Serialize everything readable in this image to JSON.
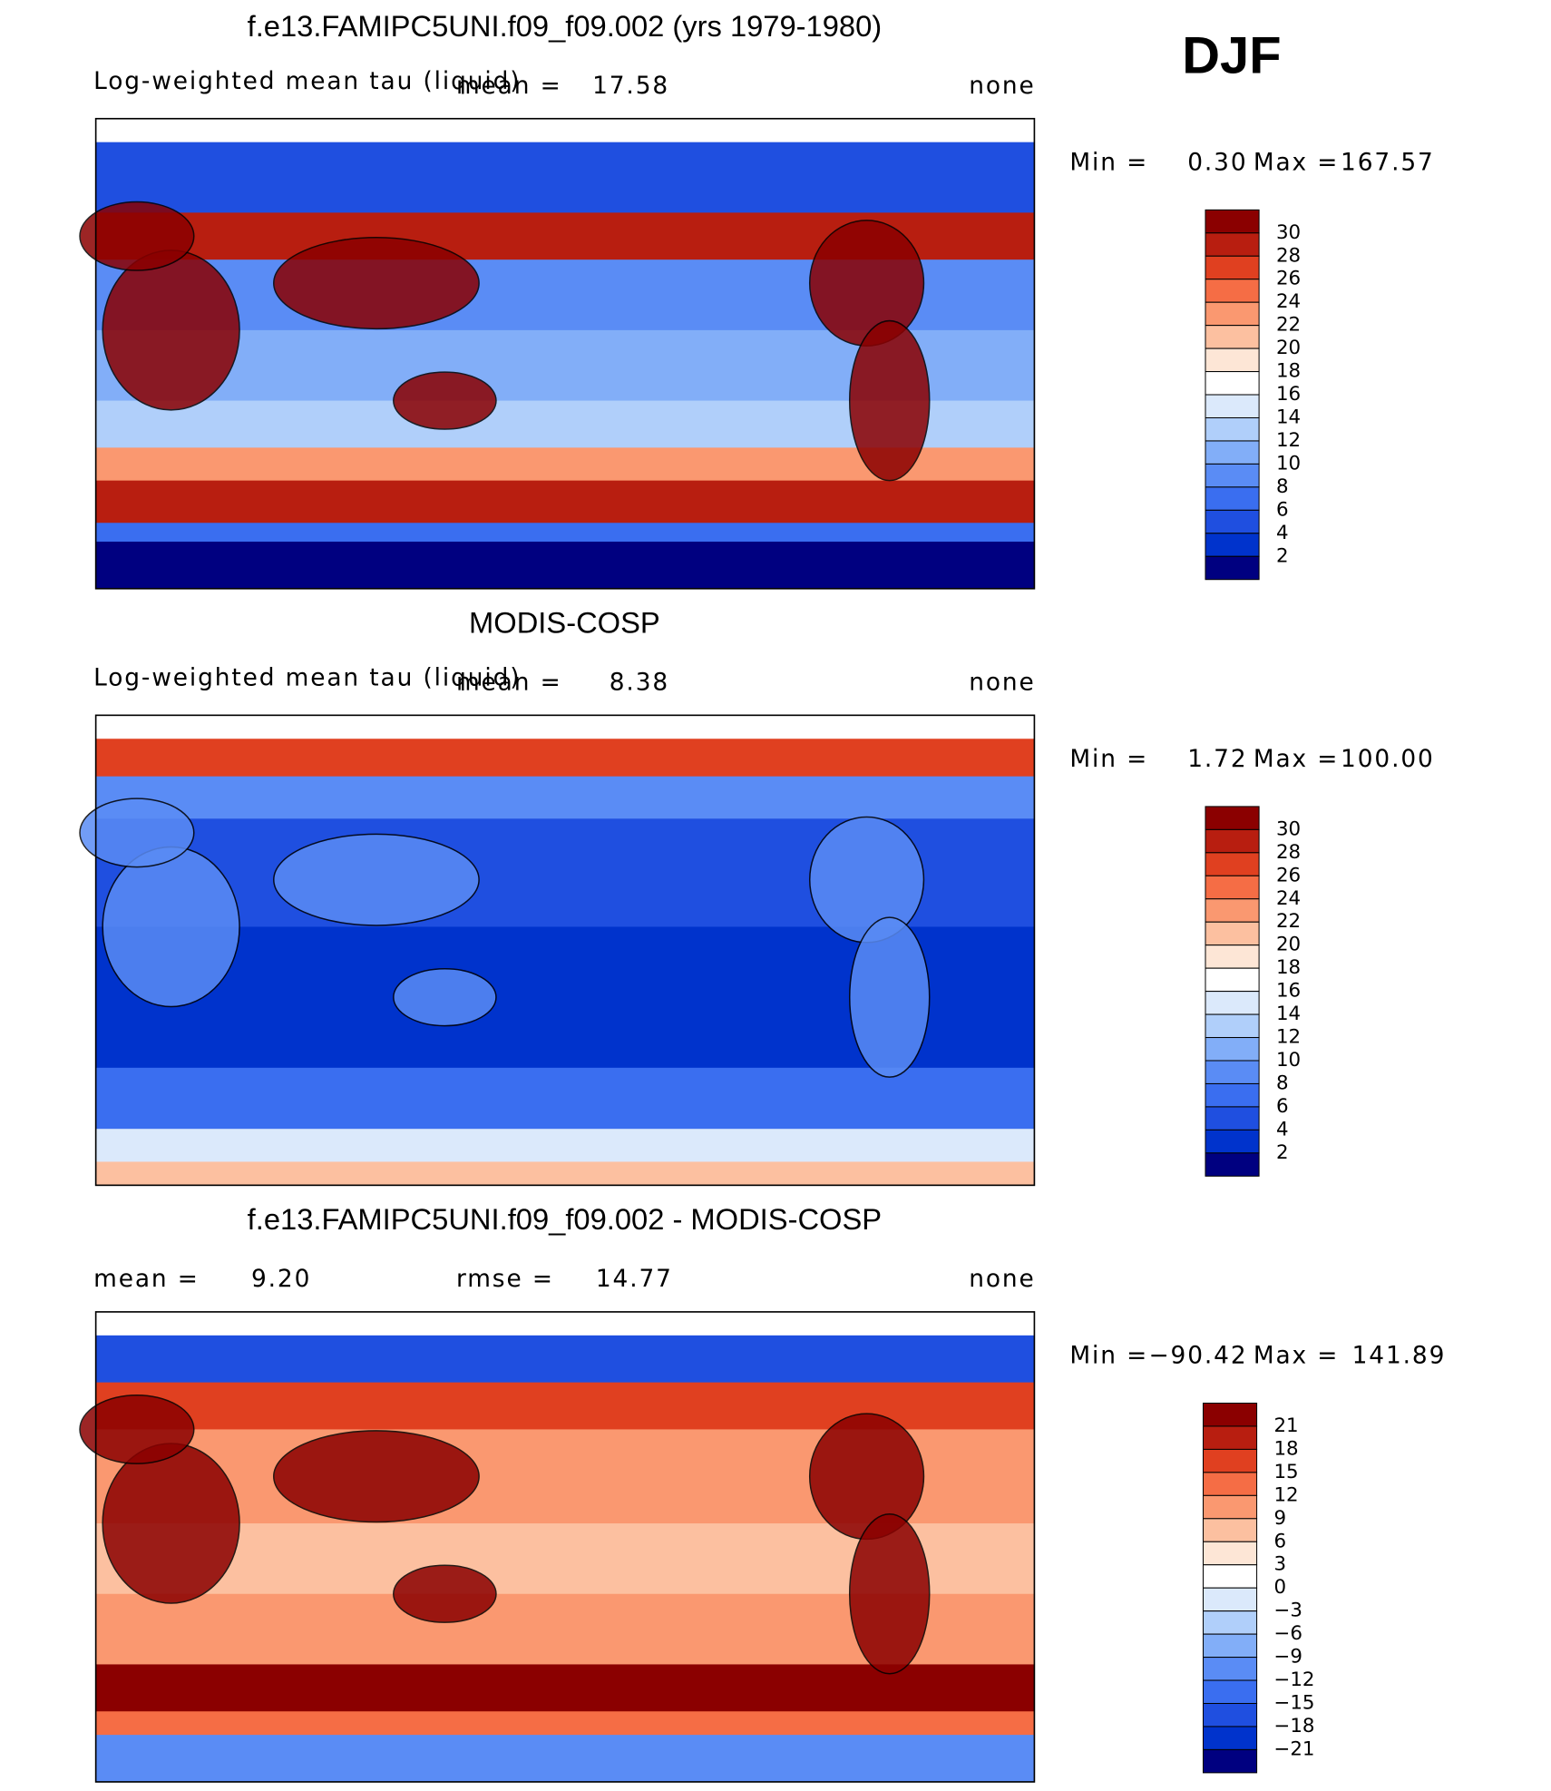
{
  "season": "DJF",
  "panels": [
    {
      "title": "f.e13.FAMIPC5UNI.f09_f09.002 (yrs 1979-1980)",
      "variable": "Log-weighted mean tau (liquid)",
      "stat_label": "mean =",
      "stat": "17.58",
      "units": "none",
      "min_label": "Min =",
      "min": "0.30",
      "max_label": "Max =",
      "max": "167.57",
      "colorbar_labels": [
        "30",
        "28",
        "26",
        "24",
        "22",
        "20",
        "18",
        "16",
        "14",
        "12",
        "10",
        "8",
        "6",
        "4",
        "2"
      ]
    },
    {
      "title": "MODIS-COSP",
      "variable": "Log-weighted mean tau (liquid)",
      "stat_label": "mean =",
      "stat": "8.38",
      "units": "none",
      "min_label": "Min =",
      "min": "1.72",
      "max_label": "Max =",
      "max": "100.00",
      "colorbar_labels": [
        "30",
        "28",
        "26",
        "24",
        "22",
        "20",
        "18",
        "16",
        "14",
        "12",
        "10",
        "8",
        "6",
        "4",
        "2"
      ]
    },
    {
      "title": "f.e13.FAMIPC5UNI.f09_f09.002 - MODIS-COSP",
      "stat_label": "mean =",
      "stat": "9.20",
      "rmse_label": "rmse =",
      "rmse": "14.77",
      "units": "none",
      "min_label": "Min =",
      "min": "−90.42",
      "max_label": "Max =",
      "max": "141.89",
      "colorbar_labels": [
        "21",
        "18",
        "15",
        "12",
        "9",
        "6",
        "3",
        "0",
        "−3",
        "−6",
        "−9",
        "−12",
        "−15",
        "−18",
        "−21"
      ]
    }
  ],
  "colors": [
    "#8b0000",
    "#b81e10",
    "#e04020",
    "#f56d45",
    "#fa9870",
    "#fcc0a0",
    "#fde6d6",
    "#ffffff",
    "#dbe9fb",
    "#b0cffa",
    "#82aef8",
    "#5a8cf5",
    "#3a6ef0",
    "#1f4fe0",
    "#0033cc",
    "#000080"
  ]
}
